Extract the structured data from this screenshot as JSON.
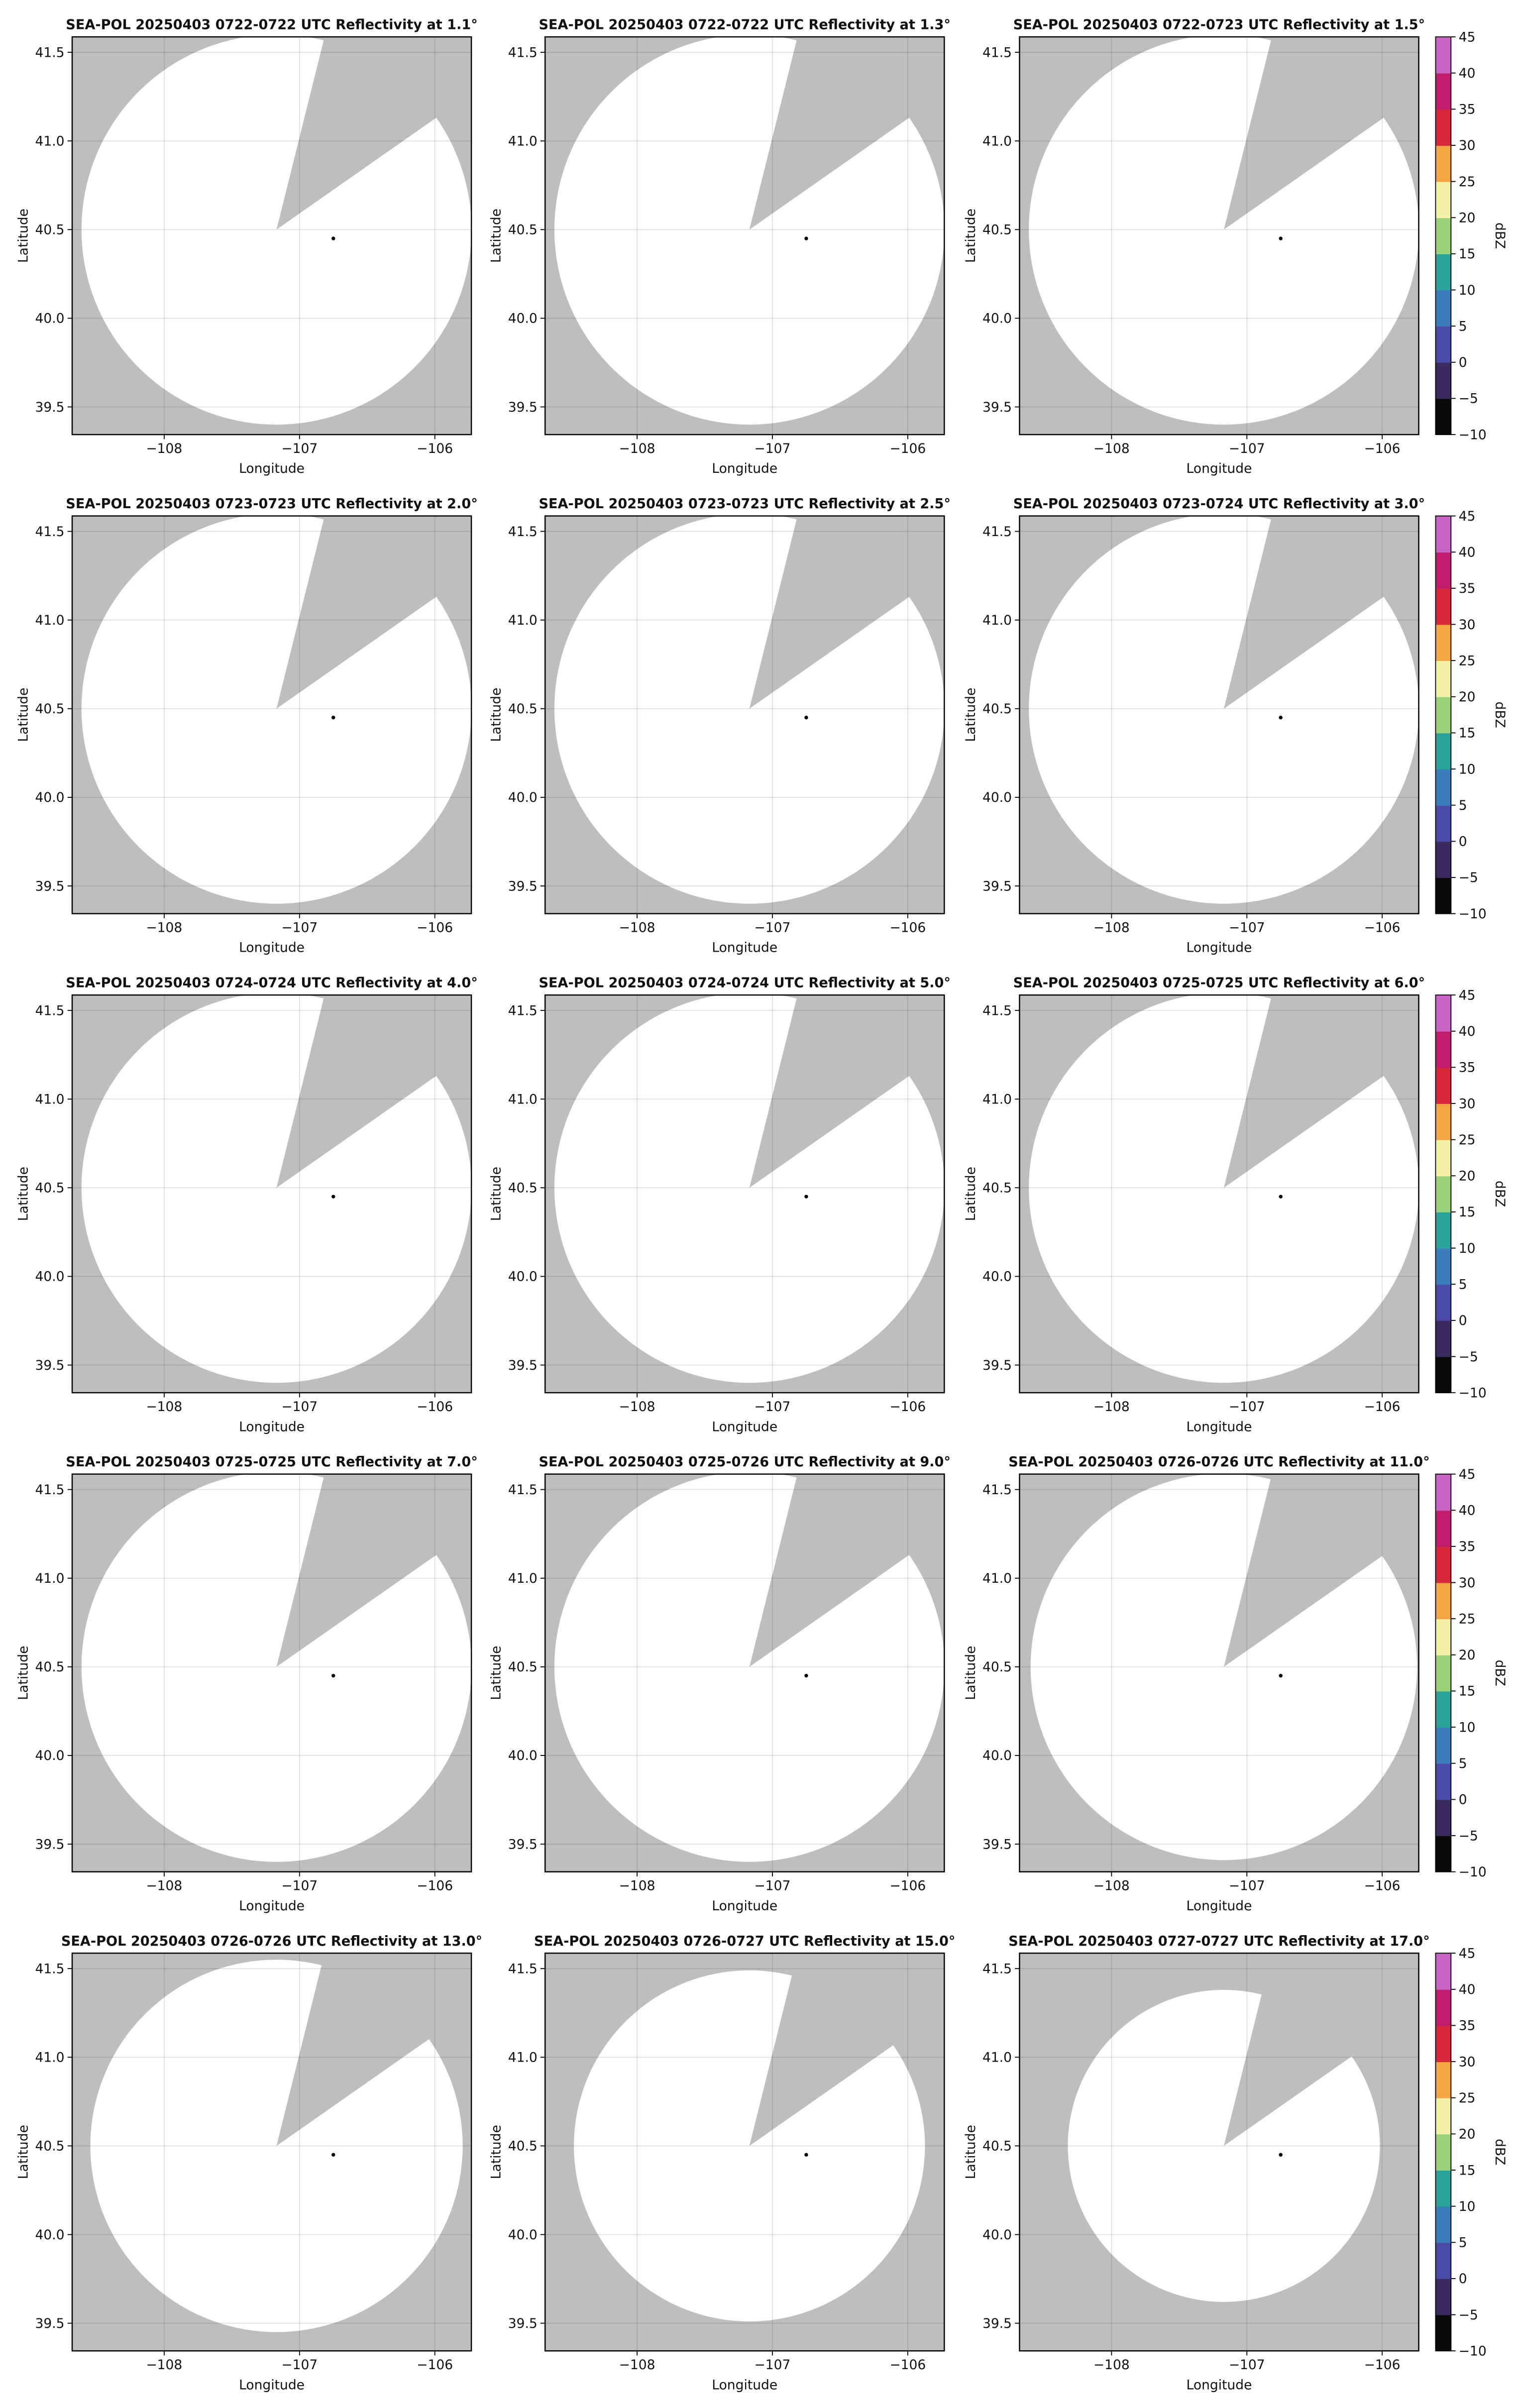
{
  "chart_data": [
    {
      "type": "ppi",
      "title": "SEA-POL 20250403 0722-0722 UTC Reflectivity at 1.1°",
      "xlabel": "Longitude",
      "ylabel": "Latitude",
      "xlim": [
        -108.68,
        -105.73
      ],
      "ylim": [
        39.344,
        41.587
      ],
      "xticks": [
        {
          "value": -108,
          "label": "−108"
        },
        {
          "value": -107,
          "label": "−107"
        },
        {
          "value": -106,
          "label": "−106"
        }
      ],
      "yticks": [
        39.5,
        {
          "value": 40,
          "label": "40.0"
        },
        40.5,
        {
          "value": 41,
          "label": "41.0"
        },
        41.5
      ],
      "grid": true,
      "background": "#bebebe",
      "color": "#ffffff",
      "center": [
        -107.17,
        40.5
      ],
      "radius": 1.1,
      "blocked_azimuths": [
        14,
        55
      ],
      "marker": [
        -106.75,
        40.45
      ]
    },
    {
      "type": "ppi",
      "title": "SEA-POL 20250403 0722-0722 UTC Reflectivity at 1.3°",
      "xlabel": "Longitude",
      "ylabel": "Latitude",
      "xlim": [
        -108.68,
        -105.73
      ],
      "ylim": [
        39.344,
        41.587
      ],
      "xticks": [
        {
          "value": -108,
          "label": "−108"
        },
        {
          "value": -107,
          "label": "−107"
        },
        {
          "value": -106,
          "label": "−106"
        }
      ],
      "yticks": [
        39.5,
        {
          "value": 40,
          "label": "40.0"
        },
        40.5,
        {
          "value": 41,
          "label": "41.0"
        },
        41.5
      ],
      "grid": true,
      "background": "#bebebe",
      "color": "#ffffff",
      "center": [
        -107.17,
        40.5
      ],
      "radius": 1.1,
      "blocked_azimuths": [
        14,
        55
      ],
      "marker": [
        -106.75,
        40.45
      ]
    },
    {
      "type": "ppi",
      "title": "SEA-POL 20250403 0722-0723 UTC Reflectivity at 1.5°",
      "xlabel": "Longitude",
      "ylabel": "Latitude",
      "xlim": [
        -108.68,
        -105.73
      ],
      "ylim": [
        39.344,
        41.587
      ],
      "xticks": [
        {
          "value": -108,
          "label": "−108"
        },
        {
          "value": -107,
          "label": "−107"
        },
        {
          "value": -106,
          "label": "−106"
        }
      ],
      "yticks": [
        39.5,
        {
          "value": 40,
          "label": "40.0"
        },
        40.5,
        {
          "value": 41,
          "label": "41.0"
        },
        41.5
      ],
      "grid": true,
      "background": "#bebebe",
      "color": "#ffffff",
      "center": [
        -107.17,
        40.5
      ],
      "radius": 1.1,
      "blocked_azimuths": [
        14,
        55
      ],
      "marker": [
        -106.75,
        40.45
      ],
      "colorbar": {
        "label": "dBZ",
        "lim": [
          -10,
          45
        ],
        "ticks": [
          {
            "value": -10,
            "label": "−10"
          },
          {
            "value": -5,
            "label": "−5"
          },
          0,
          5,
          10,
          15,
          20,
          25,
          30,
          35,
          40,
          45
        ],
        "colors": [
          "#0a0a0a",
          "#3a2a5e",
          "#4b4aa6",
          "#3a7cbc",
          "#2aa39a",
          "#9ad27c",
          "#f4f0a6",
          "#f5a444",
          "#d8283c",
          "#c01e6c",
          "#c864c4"
        ]
      }
    },
    {
      "type": "ppi",
      "title": "SEA-POL 20250403 0723-0723 UTC Reflectivity at 2.0°",
      "xlabel": "Longitude",
      "ylabel": "Latitude",
      "xlim": [
        -108.68,
        -105.73
      ],
      "ylim": [
        39.344,
        41.587
      ],
      "xticks": [
        {
          "value": -108,
          "label": "−108"
        },
        {
          "value": -107,
          "label": "−107"
        },
        {
          "value": -106,
          "label": "−106"
        }
      ],
      "yticks": [
        39.5,
        {
          "value": 40,
          "label": "40.0"
        },
        40.5,
        {
          "value": 41,
          "label": "41.0"
        },
        41.5
      ],
      "grid": true,
      "background": "#bebebe",
      "color": "#ffffff",
      "center": [
        -107.17,
        40.5
      ],
      "radius": 1.1,
      "blocked_azimuths": [
        14,
        55
      ],
      "marker": [
        -106.75,
        40.45
      ]
    },
    {
      "type": "ppi",
      "title": "SEA-POL 20250403 0723-0723 UTC Reflectivity at 2.5°",
      "xlabel": "Longitude",
      "ylabel": "Latitude",
      "xlim": [
        -108.68,
        -105.73
      ],
      "ylim": [
        39.344,
        41.587
      ],
      "xticks": [
        {
          "value": -108,
          "label": "−108"
        },
        {
          "value": -107,
          "label": "−107"
        },
        {
          "value": -106,
          "label": "−106"
        }
      ],
      "yticks": [
        39.5,
        {
          "value": 40,
          "label": "40.0"
        },
        40.5,
        {
          "value": 41,
          "label": "41.0"
        },
        41.5
      ],
      "grid": true,
      "background": "#bebebe",
      "color": "#ffffff",
      "center": [
        -107.17,
        40.5
      ],
      "radius": 1.1,
      "blocked_azimuths": [
        14,
        55
      ],
      "marker": [
        -106.75,
        40.45
      ]
    },
    {
      "type": "ppi",
      "title": "SEA-POL 20250403 0723-0724 UTC Reflectivity at 3.0°",
      "xlabel": "Longitude",
      "ylabel": "Latitude",
      "xlim": [
        -108.68,
        -105.73
      ],
      "ylim": [
        39.344,
        41.587
      ],
      "xticks": [
        {
          "value": -108,
          "label": "−108"
        },
        {
          "value": -107,
          "label": "−107"
        },
        {
          "value": -106,
          "label": "−106"
        }
      ],
      "yticks": [
        39.5,
        {
          "value": 40,
          "label": "40.0"
        },
        40.5,
        {
          "value": 41,
          "label": "41.0"
        },
        41.5
      ],
      "grid": true,
      "background": "#bebebe",
      "color": "#ffffff",
      "center": [
        -107.17,
        40.5
      ],
      "radius": 1.1,
      "blocked_azimuths": [
        14,
        55
      ],
      "marker": [
        -106.75,
        40.45
      ],
      "colorbar": {
        "label": "dBZ",
        "lim": [
          -10,
          45
        ],
        "ticks": [
          {
            "value": -10,
            "label": "−10"
          },
          {
            "value": -5,
            "label": "−5"
          },
          0,
          5,
          10,
          15,
          20,
          25,
          30,
          35,
          40,
          45
        ],
        "colors": [
          "#0a0a0a",
          "#3a2a5e",
          "#4b4aa6",
          "#3a7cbc",
          "#2aa39a",
          "#9ad27c",
          "#f4f0a6",
          "#f5a444",
          "#d8283c",
          "#c01e6c",
          "#c864c4"
        ]
      }
    },
    {
      "type": "ppi",
      "title": "SEA-POL 20250403 0724-0724 UTC Reflectivity at 4.0°",
      "xlabel": "Longitude",
      "ylabel": "Latitude",
      "xlim": [
        -108.68,
        -105.73
      ],
      "ylim": [
        39.344,
        41.587
      ],
      "xticks": [
        {
          "value": -108,
          "label": "−108"
        },
        {
          "value": -107,
          "label": "−107"
        },
        {
          "value": -106,
          "label": "−106"
        }
      ],
      "yticks": [
        39.5,
        {
          "value": 40,
          "label": "40.0"
        },
        40.5,
        {
          "value": 41,
          "label": "41.0"
        },
        41.5
      ],
      "grid": true,
      "background": "#bebebe",
      "color": "#ffffff",
      "center": [
        -107.17,
        40.5
      ],
      "radius": 1.1,
      "blocked_azimuths": [
        14,
        55
      ],
      "marker": [
        -106.75,
        40.45
      ]
    },
    {
      "type": "ppi",
      "title": "SEA-POL 20250403 0724-0724 UTC Reflectivity at 5.0°",
      "xlabel": "Longitude",
      "ylabel": "Latitude",
      "xlim": [
        -108.68,
        -105.73
      ],
      "ylim": [
        39.344,
        41.587
      ],
      "xticks": [
        {
          "value": -108,
          "label": "−108"
        },
        {
          "value": -107,
          "label": "−107"
        },
        {
          "value": -106,
          "label": "−106"
        }
      ],
      "yticks": [
        39.5,
        {
          "value": 40,
          "label": "40.0"
        },
        40.5,
        {
          "value": 41,
          "label": "41.0"
        },
        41.5
      ],
      "grid": true,
      "background": "#bebebe",
      "color": "#ffffff",
      "center": [
        -107.17,
        40.5
      ],
      "radius": 1.1,
      "blocked_azimuths": [
        14,
        55
      ],
      "marker": [
        -106.75,
        40.45
      ]
    },
    {
      "type": "ppi",
      "title": "SEA-POL 20250403 0725-0725 UTC Reflectivity at 6.0°",
      "xlabel": "Longitude",
      "ylabel": "Latitude",
      "xlim": [
        -108.68,
        -105.73
      ],
      "ylim": [
        39.344,
        41.587
      ],
      "xticks": [
        {
          "value": -108,
          "label": "−108"
        },
        {
          "value": -107,
          "label": "−107"
        },
        {
          "value": -106,
          "label": "−106"
        }
      ],
      "yticks": [
        39.5,
        {
          "value": 40,
          "label": "40.0"
        },
        40.5,
        {
          "value": 41,
          "label": "41.0"
        },
        41.5
      ],
      "grid": true,
      "background": "#bebebe",
      "color": "#ffffff",
      "center": [
        -107.17,
        40.5
      ],
      "radius": 1.1,
      "blocked_azimuths": [
        14,
        55
      ],
      "marker": [
        -106.75,
        40.45
      ],
      "colorbar": {
        "label": "dBZ",
        "lim": [
          -10,
          45
        ],
        "ticks": [
          {
            "value": -10,
            "label": "−10"
          },
          {
            "value": -5,
            "label": "−5"
          },
          0,
          5,
          10,
          15,
          20,
          25,
          30,
          35,
          40,
          45
        ],
        "colors": [
          "#0a0a0a",
          "#3a2a5e",
          "#4b4aa6",
          "#3a7cbc",
          "#2aa39a",
          "#9ad27c",
          "#f4f0a6",
          "#f5a444",
          "#d8283c",
          "#c01e6c",
          "#c864c4"
        ]
      }
    },
    {
      "type": "ppi",
      "title": "SEA-POL 20250403 0725-0725 UTC Reflectivity at 7.0°",
      "xlabel": "Longitude",
      "ylabel": "Latitude",
      "xlim": [
        -108.68,
        -105.73
      ],
      "ylim": [
        39.344,
        41.587
      ],
      "xticks": [
        {
          "value": -108,
          "label": "−108"
        },
        {
          "value": -107,
          "label": "−107"
        },
        {
          "value": -106,
          "label": "−106"
        }
      ],
      "yticks": [
        39.5,
        {
          "value": 40,
          "label": "40.0"
        },
        40.5,
        {
          "value": 41,
          "label": "41.0"
        },
        41.5
      ],
      "grid": true,
      "background": "#bebebe",
      "color": "#ffffff",
      "center": [
        -107.17,
        40.5
      ],
      "radius": 1.1,
      "blocked_azimuths": [
        14,
        55
      ],
      "marker": [
        -106.75,
        40.45
      ]
    },
    {
      "type": "ppi",
      "title": "SEA-POL 20250403 0725-0726 UTC Reflectivity at 9.0°",
      "xlabel": "Longitude",
      "ylabel": "Latitude",
      "xlim": [
        -108.68,
        -105.73
      ],
      "ylim": [
        39.344,
        41.587
      ],
      "xticks": [
        {
          "value": -108,
          "label": "−108"
        },
        {
          "value": -107,
          "label": "−107"
        },
        {
          "value": -106,
          "label": "−106"
        }
      ],
      "yticks": [
        39.5,
        {
          "value": 40,
          "label": "40.0"
        },
        40.5,
        {
          "value": 41,
          "label": "41.0"
        },
        41.5
      ],
      "grid": true,
      "background": "#bebebe",
      "color": "#ffffff",
      "center": [
        -107.17,
        40.5
      ],
      "radius": 1.1,
      "blocked_azimuths": [
        14,
        55
      ],
      "marker": [
        -106.75,
        40.45
      ]
    },
    {
      "type": "ppi",
      "title": "SEA-POL 20250403 0726-0726 UTC Reflectivity at 11.0°",
      "xlabel": "Longitude",
      "ylabel": "Latitude",
      "xlim": [
        -108.68,
        -105.73
      ],
      "ylim": [
        39.344,
        41.587
      ],
      "xticks": [
        {
          "value": -108,
          "label": "−108"
        },
        {
          "value": -107,
          "label": "−107"
        },
        {
          "value": -106,
          "label": "−106"
        }
      ],
      "yticks": [
        39.5,
        {
          "value": 40,
          "label": "40.0"
        },
        40.5,
        {
          "value": 41,
          "label": "41.0"
        },
        41.5
      ],
      "grid": true,
      "background": "#bebebe",
      "color": "#ffffff",
      "center": [
        -107.17,
        40.5
      ],
      "radius": 1.09,
      "blocked_azimuths": [
        14,
        55
      ],
      "marker": [
        -106.75,
        40.45
      ],
      "colorbar": {
        "label": "dBZ",
        "lim": [
          -10,
          45
        ],
        "ticks": [
          {
            "value": -10,
            "label": "−10"
          },
          {
            "value": -5,
            "label": "−5"
          },
          0,
          5,
          10,
          15,
          20,
          25,
          30,
          35,
          40,
          45
        ],
        "colors": [
          "#0a0a0a",
          "#3a2a5e",
          "#4b4aa6",
          "#3a7cbc",
          "#2aa39a",
          "#9ad27c",
          "#f4f0a6",
          "#f5a444",
          "#d8283c",
          "#c01e6c",
          "#c864c4"
        ]
      }
    },
    {
      "type": "ppi",
      "title": "SEA-POL 20250403 0726-0726 UTC Reflectivity at 13.0°",
      "xlabel": "Longitude",
      "ylabel": "Latitude",
      "xlim": [
        -108.68,
        -105.73
      ],
      "ylim": [
        39.344,
        41.587
      ],
      "xticks": [
        {
          "value": -108,
          "label": "−108"
        },
        {
          "value": -107,
          "label": "−107"
        },
        {
          "value": -106,
          "label": "−106"
        }
      ],
      "yticks": [
        39.5,
        {
          "value": 40,
          "label": "40.0"
        },
        40.5,
        {
          "value": 41,
          "label": "41.0"
        },
        41.5
      ],
      "grid": true,
      "background": "#bebebe",
      "color": "#ffffff",
      "center": [
        -107.17,
        40.5
      ],
      "radius": 1.05,
      "blocked_azimuths": [
        14,
        55
      ],
      "marker": [
        -106.75,
        40.45
      ]
    },
    {
      "type": "ppi",
      "title": "SEA-POL 20250403 0726-0727 UTC Reflectivity at 15.0°",
      "xlabel": "Longitude",
      "ylabel": "Latitude",
      "xlim": [
        -108.68,
        -105.73
      ],
      "ylim": [
        39.344,
        41.587
      ],
      "xticks": [
        {
          "value": -108,
          "label": "−108"
        },
        {
          "value": -107,
          "label": "−107"
        },
        {
          "value": -106,
          "label": "−106"
        }
      ],
      "yticks": [
        39.5,
        {
          "value": 40,
          "label": "40.0"
        },
        40.5,
        {
          "value": 41,
          "label": "41.0"
        },
        41.5
      ],
      "grid": true,
      "background": "#bebebe",
      "color": "#ffffff",
      "center": [
        -107.17,
        40.5
      ],
      "radius": 0.99,
      "blocked_azimuths": [
        14,
        55
      ],
      "marker": [
        -106.75,
        40.45
      ]
    },
    {
      "type": "ppi",
      "title": "SEA-POL 20250403 0727-0727 UTC Reflectivity at 17.0°",
      "xlabel": "Longitude",
      "ylabel": "Latitude",
      "xlim": [
        -108.68,
        -105.73
      ],
      "ylim": [
        39.344,
        41.587
      ],
      "xticks": [
        {
          "value": -108,
          "label": "−108"
        },
        {
          "value": -107,
          "label": "−107"
        },
        {
          "value": -106,
          "label": "−106"
        }
      ],
      "yticks": [
        39.5,
        {
          "value": 40,
          "label": "40.0"
        },
        40.5,
        {
          "value": 41,
          "label": "41.0"
        },
        41.5
      ],
      "grid": true,
      "background": "#bebebe",
      "color": "#ffffff",
      "center": [
        -107.17,
        40.5
      ],
      "radius": 0.88,
      "blocked_azimuths": [
        14,
        55
      ],
      "marker": [
        -106.75,
        40.45
      ],
      "colorbar": {
        "label": "dBZ",
        "lim": [
          -10,
          45
        ],
        "ticks": [
          {
            "value": -10,
            "label": "−10"
          },
          {
            "value": -5,
            "label": "−5"
          },
          0,
          5,
          10,
          15,
          20,
          25,
          30,
          35,
          40,
          45
        ],
        "colors": [
          "#0a0a0a",
          "#3a2a5e",
          "#4b4aa6",
          "#3a7cbc",
          "#2aa39a",
          "#9ad27c",
          "#f4f0a6",
          "#f5a444",
          "#d8283c",
          "#c01e6c",
          "#c864c4"
        ]
      }
    }
  ]
}
